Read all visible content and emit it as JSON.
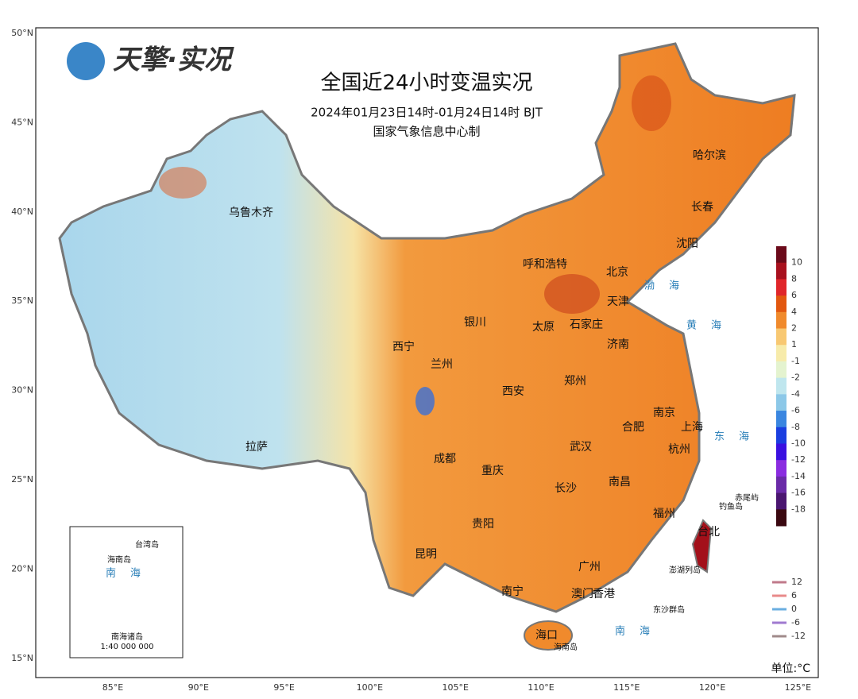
{
  "header": {
    "logo": "天擎·实况",
    "title": "全国近24小时变温实况",
    "period": "2024年01月23日14时-01月24日14时  BJT",
    "producer": "国家气象信息中心制"
  },
  "latitudes": [
    "50°N",
    "45°N",
    "40°N",
    "35°N",
    "30°N",
    "25°N",
    "20°N",
    "15°N"
  ],
  "longitudes": [
    "85°E",
    "90°E",
    "95°E",
    "100°E",
    "105°E",
    "110°E",
    "115°E",
    "120°E",
    "125°E"
  ],
  "cities": [
    "乌鲁木齐",
    "呼和浩特",
    "北京",
    "天津",
    "哈尔滨",
    "长春",
    "沈阳",
    "银川",
    "太原",
    "石家庄",
    "济南",
    "西宁",
    "兰州",
    "西安",
    "郑州",
    "南京",
    "合肥",
    "上海",
    "成都",
    "重庆",
    "武汉",
    "杭州",
    "拉萨",
    "长沙",
    "南昌",
    "福州",
    "贵阳",
    "昆明",
    "台北",
    "广州",
    "南宁",
    "澳门",
    "香港",
    "海口"
  ],
  "seas": [
    "渤海",
    "黄海",
    "东海",
    "南海"
  ],
  "islands": [
    "赤尾屿",
    "钓鱼岛",
    "澎湖列岛",
    "东沙群岛",
    "海南岛"
  ],
  "inset": [
    "南海",
    "台湾岛",
    "海南岛",
    "南海诸岛",
    "1:40 000 000"
  ],
  "color_legend": {
    "labels": [
      10,
      8,
      6,
      4,
      2,
      1,
      -1,
      -2,
      -4,
      -6,
      -8,
      -10,
      -12,
      -14,
      -16,
      -18
    ],
    "colors": [
      "#6b0a1a",
      "#a8101e",
      "#e0262a",
      "#e2570f",
      "#f08a2c",
      "#f8c872",
      "#f7ebaa",
      "#e4f3cf",
      "#bfe6ee",
      "#8cc8e8",
      "#3a86e0",
      "#1a3ee0",
      "#3a10e0",
      "#8a2ce0",
      "#6a2aa8",
      "#4a1570",
      "#3a0810"
    ]
  },
  "line_legend": [
    {
      "label": 12,
      "color": "#c07a8a"
    },
    {
      "label": 6,
      "color": "#e88a8a"
    },
    {
      "label": 0,
      "color": "#6aaee0"
    },
    {
      "label": -6,
      "color": "#a07ad0"
    },
    {
      "label": -12,
      "color": "#a08a8a"
    }
  ],
  "unit": "单位:°C"
}
